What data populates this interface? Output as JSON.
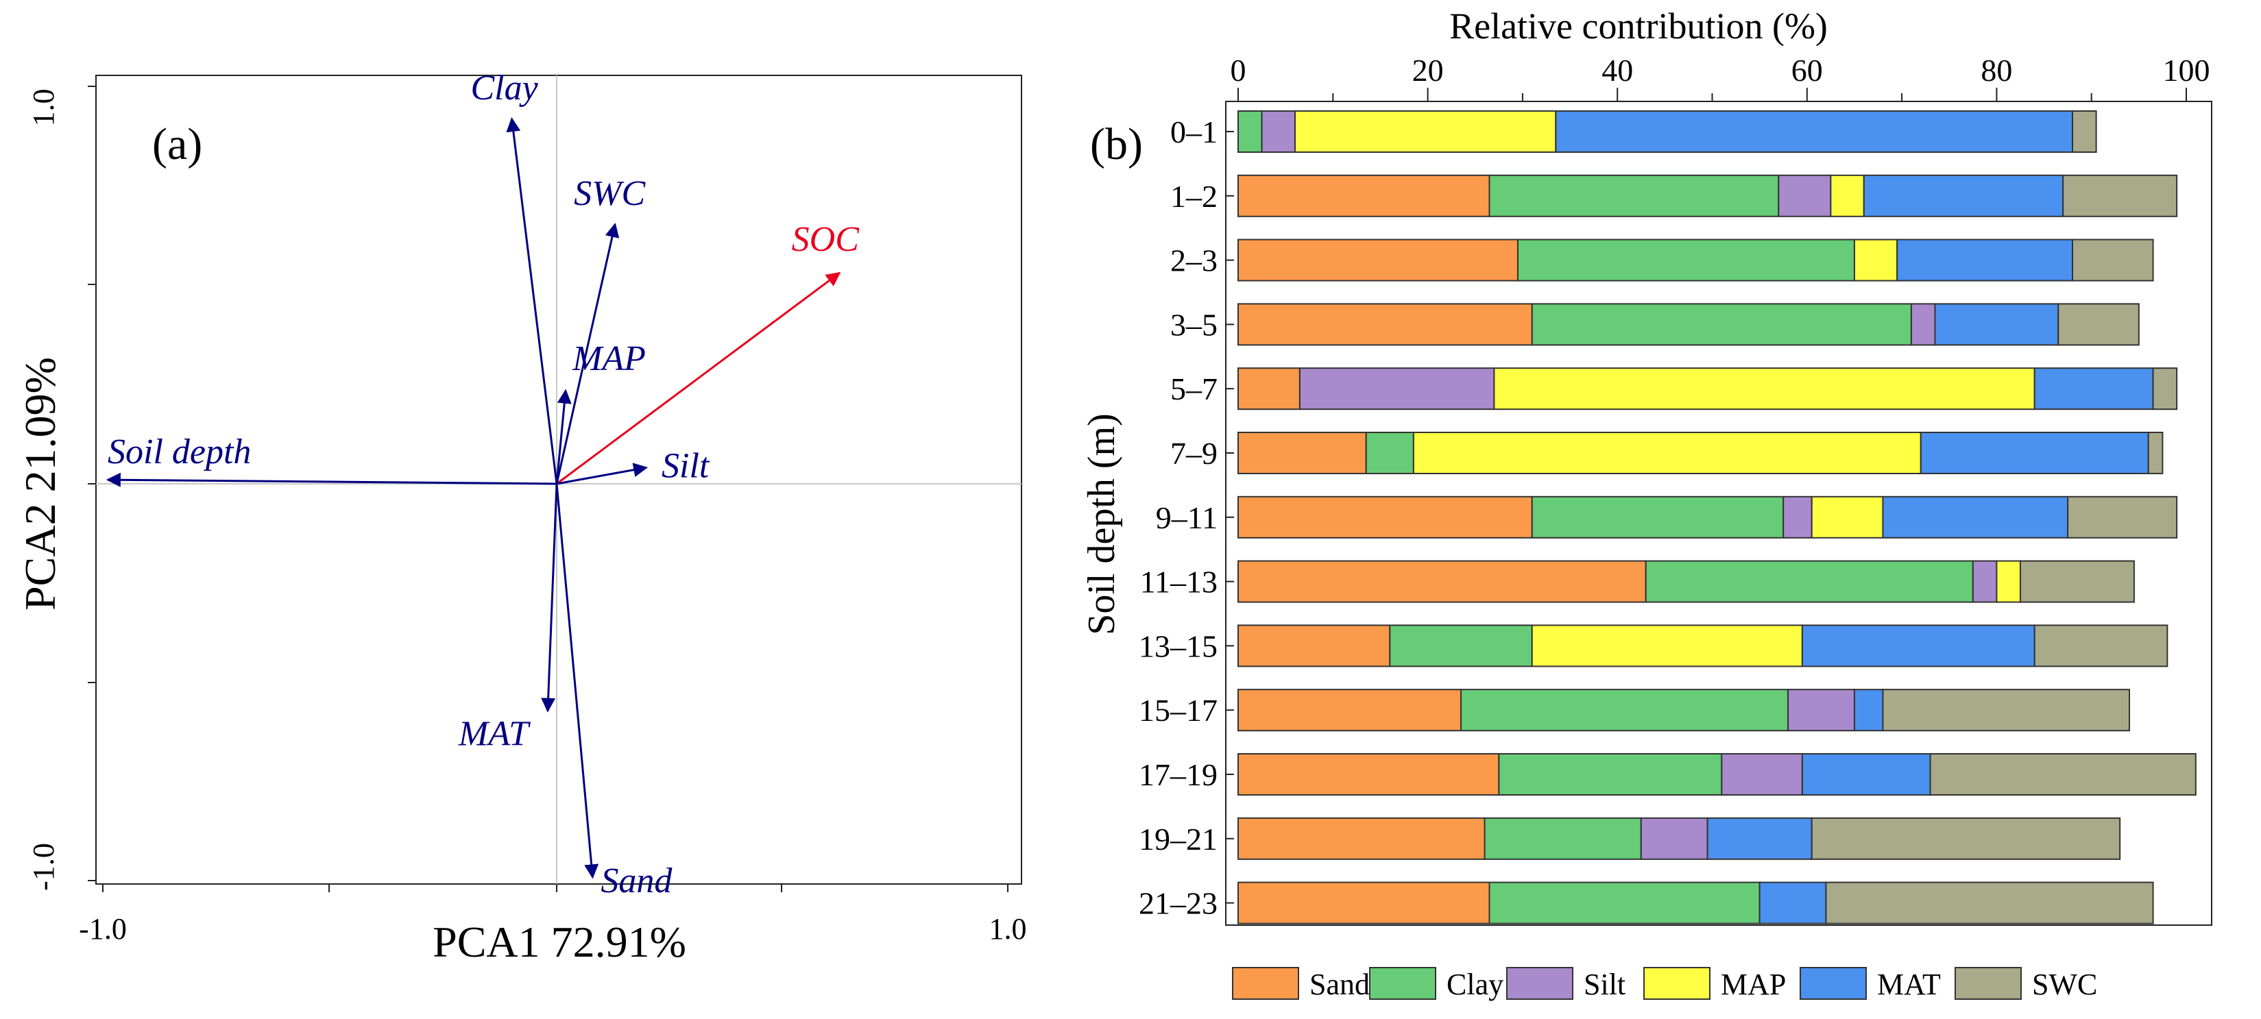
{
  "chart_data": [
    {
      "type": "scatter",
      "panel_label": "(a)",
      "xlabel": "PCA1 72.91%",
      "ylabel": "PCA2 21.09%",
      "xlim": [
        -1.0,
        1.0
      ],
      "ylim": [
        -1.0,
        1.0
      ],
      "x_tick_labels": [
        "-1.0",
        "1.0"
      ],
      "y_tick_labels": [
        "1.0",
        "-1.0"
      ],
      "vectors": [
        {
          "name": "Clay",
          "x": -0.1,
          "y": 0.9,
          "color": "#000080"
        },
        {
          "name": "SWC",
          "x": 0.13,
          "y": 0.64,
          "color": "#000080"
        },
        {
          "name": "SOC",
          "x": 0.63,
          "y": 0.52,
          "color": "#e8001c"
        },
        {
          "name": "MAP",
          "x": 0.02,
          "y": 0.23,
          "color": "#000080"
        },
        {
          "name": "Soil depth",
          "x": -1.0,
          "y": 0.01,
          "color": "#000080"
        },
        {
          "name": "Silt",
          "x": 0.2,
          "y": 0.04,
          "color": "#000080"
        },
        {
          "name": "MAT",
          "x": -0.02,
          "y": -0.56,
          "color": "#000080"
        },
        {
          "name": "Sand",
          "x": 0.08,
          "y": -0.97,
          "color": "#000080"
        }
      ]
    },
    {
      "type": "bar",
      "orientation": "horizontal",
      "stacked": true,
      "panel_label": "(b)",
      "title": "Relative contribution (%)",
      "xlabel": "Relative contribution (%)",
      "ylabel": "Soil depth (m)",
      "xlim": [
        0,
        105
      ],
      "x_ticks": [
        "0",
        "20",
        "40",
        "60",
        "80",
        "100"
      ],
      "categories": [
        "0–1",
        "1–2",
        "2–3",
        "3–5",
        "5–7",
        "7–9",
        "9–11",
        "11–13",
        "13–15",
        "15–17",
        "17–19",
        "19–21",
        "21–23"
      ],
      "series": [
        {
          "name": "Sand",
          "color": "#fb9a4b",
          "values": [
            0,
            26.5,
            29.5,
            31,
            6.5,
            13.5,
            31,
            43,
            16,
            23.5,
            27.5,
            26,
            26.5
          ]
        },
        {
          "name": "Clay",
          "color": "#66cc77",
          "values": [
            2.5,
            30.5,
            35.5,
            40,
            0,
            5,
            26.5,
            34.5,
            15,
            34.5,
            23.5,
            16.5,
            28.5
          ]
        },
        {
          "name": "Silt",
          "color": "#a98bcd",
          "values": [
            3.5,
            5.5,
            0,
            2.5,
            20.5,
            0,
            3,
            2.5,
            0,
            7,
            8.5,
            7,
            0
          ]
        },
        {
          "name": "MAP",
          "color": "#ffff44",
          "values": [
            27.5,
            3.5,
            4.5,
            0,
            57,
            53.5,
            7.5,
            2.5,
            28.5,
            0,
            0,
            0,
            0
          ]
        },
        {
          "name": "MAT",
          "color": "#4b91ef",
          "values": [
            54.5,
            21,
            18.5,
            13,
            12.5,
            24,
            19.5,
            0,
            24.5,
            3,
            13.5,
            11,
            7
          ]
        },
        {
          "name": "SWC",
          "color": "#a8aa8a",
          "values": [
            2.5,
            12,
            8.5,
            8.5,
            2.5,
            1.5,
            11.5,
            12,
            14,
            26,
            28,
            32.5,
            34.5
          ]
        }
      ]
    }
  ]
}
